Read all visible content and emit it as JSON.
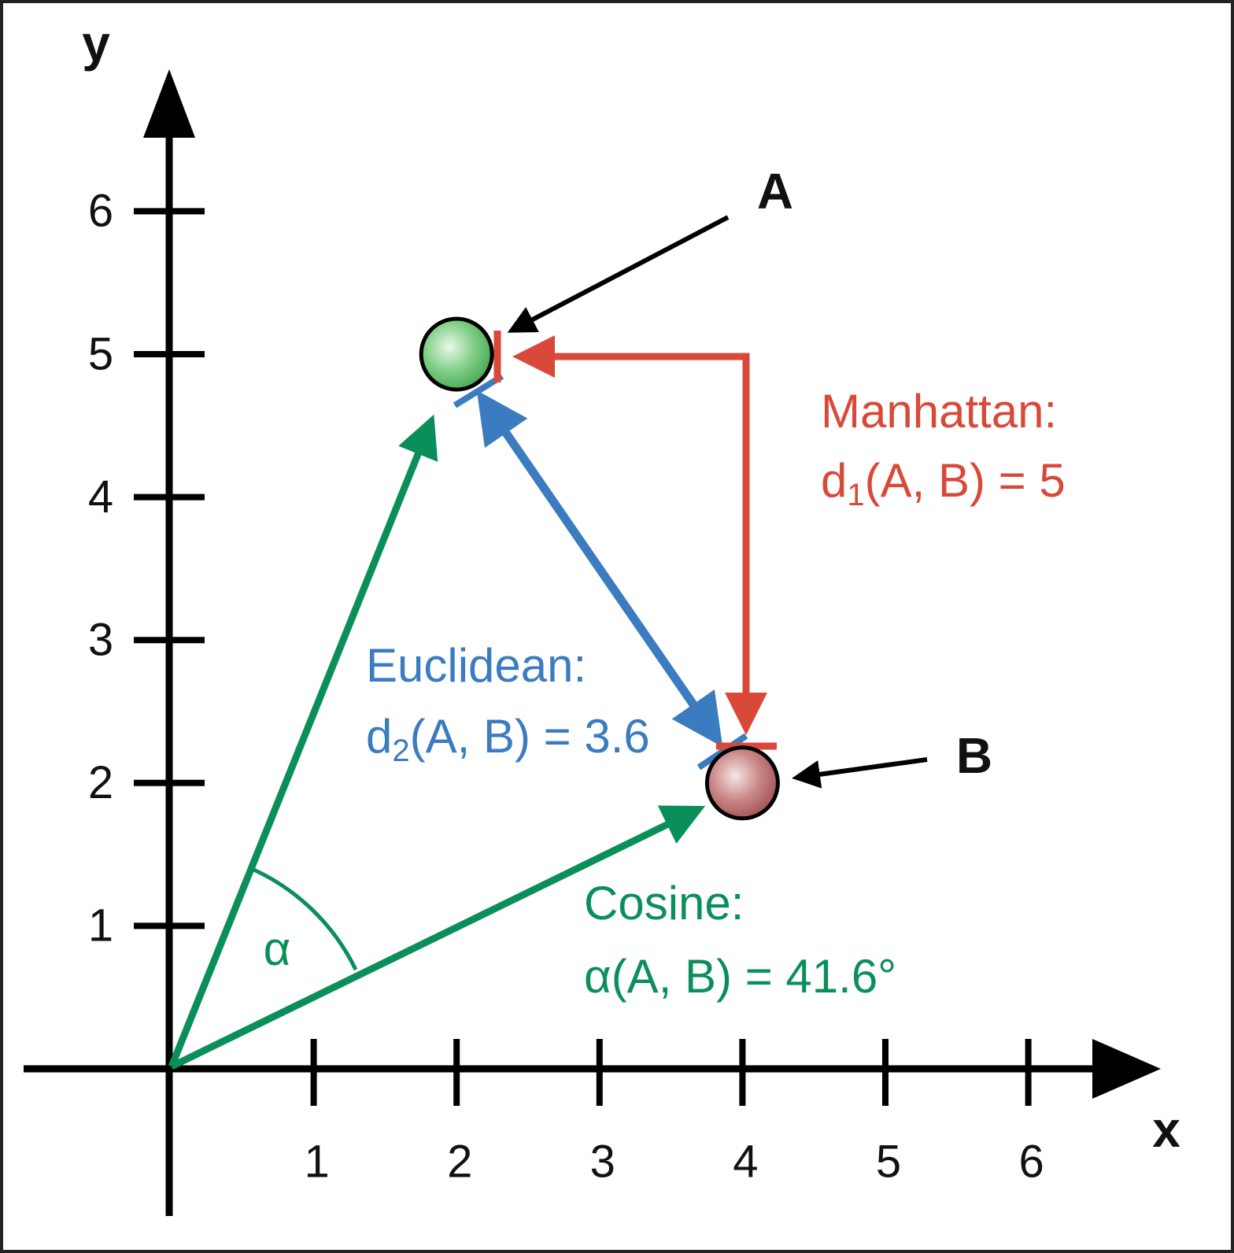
{
  "axes": {
    "x_label": "x",
    "y_label": "y",
    "xticks": [
      1,
      2,
      3,
      4,
      5,
      6
    ],
    "yticks": [
      1,
      2,
      3,
      4,
      5,
      6
    ]
  },
  "points": [
    {
      "label": "A",
      "x": 2,
      "y": 5
    },
    {
      "label": "B",
      "x": 4,
      "y": 2
    }
  ],
  "manhattan": {
    "title": "Manhattan:",
    "d": "d",
    "sub": "1",
    "rest": "(A, B) = 5"
  },
  "euclidean": {
    "title": "Euclidean:",
    "d": "d",
    "sub": "2",
    "rest": "(A, B) = 3.6"
  },
  "cosine": {
    "title": "Cosine:",
    "formula": "α(A, B) = 41.6°",
    "angle": "α"
  }
}
